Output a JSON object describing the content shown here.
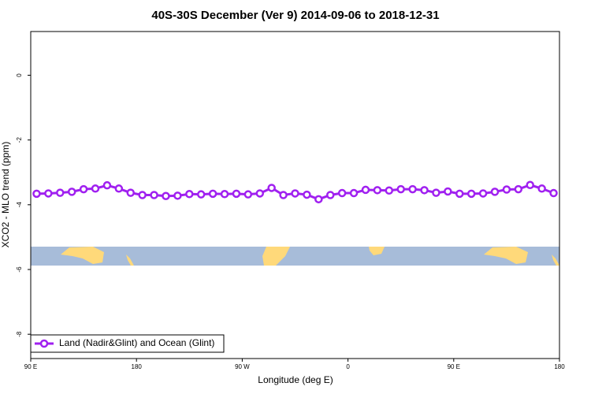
{
  "chart_data": {
    "type": "line",
    "title": "40S-30S December (Ver 9)   2014-09-06 to 2018-12-31",
    "x_label": "Longitude (deg E)",
    "y_label": "XCO2 - MLO trend (ppm)",
    "x": [
      95,
      105,
      115,
      125,
      135,
      145,
      155,
      165,
      175,
      185,
      195,
      205,
      215,
      225,
      235,
      245,
      255,
      265,
      275,
      285,
      295,
      305,
      315,
      325,
      335,
      345,
      355,
      365,
      375,
      385,
      395,
      405,
      415,
      425,
      435,
      445,
      455,
      465,
      475,
      485,
      495,
      505,
      515,
      525,
      535
    ],
    "series": [
      {
        "name": "Land (Nadir&Glint) and Ocean (Glint)",
        "color": "#a020f0",
        "values": [
          -3.66,
          -3.65,
          -3.63,
          -3.6,
          -3.52,
          -3.5,
          -3.4,
          -3.5,
          -3.63,
          -3.7,
          -3.7,
          -3.73,
          -3.72,
          -3.67,
          -3.68,
          -3.66,
          -3.67,
          -3.66,
          -3.68,
          -3.65,
          -3.48,
          -3.7,
          -3.65,
          -3.69,
          -3.83,
          -3.7,
          -3.64,
          -3.64,
          -3.54,
          -3.55,
          -3.56,
          -3.52,
          -3.52,
          -3.55,
          -3.63,
          -3.59,
          -3.66,
          -3.66,
          -3.65,
          -3.6,
          -3.53,
          -3.52,
          -3.39,
          -3.5,
          -3.64
        ]
      }
    ],
    "xlim": [
      90,
      540
    ],
    "xticks": [
      {
        "value": 90,
        "label": "90 E"
      },
      180,
      {
        "value": 270,
        "label": "90 W"
      },
      {
        "value": 360,
        "label": "0"
      },
      {
        "value": 450,
        "label": "90 E"
      },
      {
        "value": 540,
        "label": "180"
      }
    ],
    "ylim": [
      -8.75,
      1.35
    ],
    "yticks": [
      0,
      -2,
      -4,
      -6,
      -8
    ],
    "grid": false,
    "legend": "bottom-left"
  }
}
